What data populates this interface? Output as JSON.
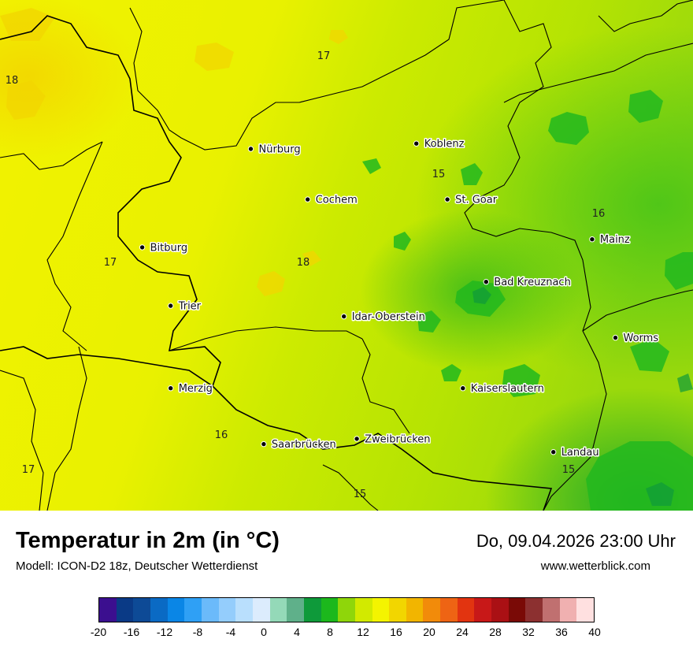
{
  "map": {
    "cities": [
      {
        "name": "Nürburg",
        "lon": 6.95,
        "lat": 50.34
      },
      {
        "name": "Koblenz",
        "lon": 7.59,
        "lat": 50.36
      },
      {
        "name": "Cochem",
        "lon": 7.17,
        "lat": 50.15
      },
      {
        "name": "St. Goar",
        "lon": 7.71,
        "lat": 50.15
      },
      {
        "name": "Mainz",
        "lon": 8.27,
        "lat": 50.0
      },
      {
        "name": "Bitburg",
        "lon": 6.53,
        "lat": 49.97
      },
      {
        "name": "Bad Kreuznach",
        "lon": 7.86,
        "lat": 49.84
      },
      {
        "name": "Trier",
        "lon": 6.64,
        "lat": 49.75
      },
      {
        "name": "Idar-Oberstein",
        "lon": 7.31,
        "lat": 49.71
      },
      {
        "name": "Worms",
        "lon": 8.36,
        "lat": 49.63
      },
      {
        "name": "Merzig",
        "lon": 6.64,
        "lat": 49.44
      },
      {
        "name": "Kaiserslautern",
        "lon": 7.77,
        "lat": 49.44
      },
      {
        "name": "Saarbrücken",
        "lon": 7.0,
        "lat": 49.23
      },
      {
        "name": "Zweibrücken",
        "lon": 7.36,
        "lat": 49.25
      },
      {
        "name": "Landau",
        "lon": 8.12,
        "lat": 49.2
      }
    ],
    "isoline_labels": [
      "18",
      "17",
      "15",
      "16",
      "17",
      "18",
      "16",
      "17",
      "15",
      "15"
    ],
    "colors": {
      "field_warm": "#f2f200",
      "field_mid": "#cdeb00",
      "field_cool": "#9ddb0c",
      "field_green": "#22b91e",
      "border": "#000000"
    }
  },
  "footer": {
    "title": "Temperatur in 2m (in °C)",
    "model": "Modell: ICON-D2 18z, Deutscher Wetterdienst",
    "datetime": "Do, 09.04.2026 23:00 Uhr",
    "website": "www.wetterblick.com"
  },
  "legend": {
    "colors": [
      "#3b0f8f",
      "#0a3a86",
      "#0d4a96",
      "#0a6ac4",
      "#0a86e6",
      "#2fa0f5",
      "#6bbafa",
      "#94cdfc",
      "#b9dffd",
      "#dcecfd",
      "#94d9b8",
      "#5fb08a",
      "#0e9a3a",
      "#1cb81c",
      "#8fd60a",
      "#d2ea00",
      "#f4f400",
      "#f2d600",
      "#f2b500",
      "#f28b0a",
      "#ee6414",
      "#e23410",
      "#c81818",
      "#aa1014",
      "#7a0a06",
      "#8c3030",
      "#c07070",
      "#f0b0b0",
      "#ffe0e0"
    ],
    "ticks": [
      "-20",
      "-16",
      "-12",
      "-8",
      "-4",
      "0",
      "4",
      "8",
      "12",
      "16",
      "20",
      "24",
      "28",
      "32",
      "36",
      "40"
    ]
  }
}
